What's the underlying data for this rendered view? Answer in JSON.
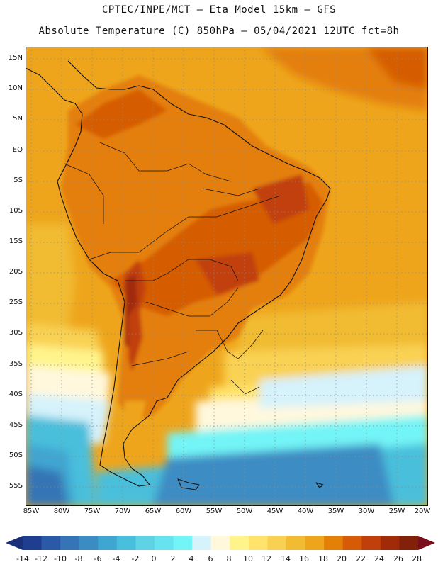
{
  "header": {
    "line1": "CPTEC/INPE/MCT –  Eta Model 15km – GFS",
    "line2": "Absolute Temperature (C) 850hPa – 05/04/2021 12UTC fct=8h"
  },
  "axes": {
    "lat_labels": [
      "15N",
      "10N",
      "5N",
      "EQ",
      "5S",
      "10S",
      "15S",
      "20S",
      "25S",
      "30S",
      "35S",
      "40S",
      "45S",
      "50S",
      "55S"
    ],
    "lon_labels": [
      "85W",
      "80W",
      "75W",
      "70W",
      "65W",
      "60W",
      "55W",
      "50W",
      "45W",
      "40W",
      "35W",
      "30W",
      "25W",
      "20W"
    ]
  },
  "colorbar": {
    "labels": [
      "-14",
      "-12",
      "-10",
      "-8",
      "-6",
      "-4",
      "-2",
      "0",
      "2",
      "4",
      "6",
      "8",
      "10",
      "12",
      "14",
      "16",
      "18",
      "20",
      "22",
      "24",
      "26",
      "28"
    ],
    "colors": [
      "#1f3e8f",
      "#2a5aa7",
      "#3574b6",
      "#3c8cc4",
      "#3fa6d1",
      "#48bfdc",
      "#5fd3e5",
      "#66e3ee",
      "#73f4f6",
      "#d6f2fb",
      "#fff8dd",
      "#fff48c",
      "#ffe36a",
      "#f9d152",
      "#f1bb33",
      "#eea51c",
      "#e47f08",
      "#d65b06",
      "#c13f0a",
      "#a12a08",
      "#82200a"
    ],
    "under_color": "#1a2f78",
    "over_color": "#7a0f1c"
  }
}
